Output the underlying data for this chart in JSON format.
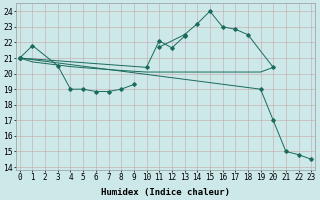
{
  "xlabel": "Humidex (Indice chaleur)",
  "line_color": "#1a6b5a",
  "bg_color": "#cce8e8",
  "grid_color_major": "#d4b8b8",
  "grid_color_minor": "#e0cccc",
  "marker": "D",
  "markersize": 1.8,
  "linewidth": 0.7,
  "ylim": [
    13.8,
    24.5
  ],
  "xlim": [
    -0.3,
    23.3
  ],
  "yticks": [
    14,
    15,
    16,
    17,
    18,
    19,
    20,
    21,
    22,
    23,
    24
  ],
  "xticks": [
    0,
    1,
    2,
    3,
    4,
    5,
    6,
    7,
    8,
    9,
    10,
    11,
    12,
    13,
    14,
    15,
    16,
    17,
    18,
    19,
    20,
    21,
    22,
    23
  ],
  "line1_x": [
    0,
    1,
    3,
    4,
    5,
    6,
    7,
    8,
    9
  ],
  "line1_y": [
    21.0,
    21.8,
    20.5,
    19.0,
    19.0,
    18.85,
    18.85,
    19.0,
    19.3
  ],
  "line2_x": [
    0,
    10,
    11,
    12,
    13
  ],
  "line2_y": [
    21.0,
    20.4,
    22.1,
    21.65,
    22.4
  ],
  "line3_x": [
    11,
    13,
    14,
    15,
    16,
    17,
    18,
    20
  ],
  "line3_y": [
    21.7,
    22.5,
    23.2,
    24.0,
    23.0,
    22.85,
    22.5,
    20.4
  ],
  "line_flat_x": [
    0,
    1,
    2,
    3,
    4,
    5,
    6,
    7,
    8,
    9,
    10,
    11,
    12,
    13,
    14,
    15,
    16,
    17,
    18,
    19,
    20
  ],
  "line_flat_y": [
    21.0,
    20.75,
    20.65,
    20.55,
    20.45,
    20.38,
    20.32,
    20.26,
    20.2,
    20.15,
    20.1,
    20.1,
    20.1,
    20.1,
    20.1,
    20.1,
    20.1,
    20.1,
    20.1,
    20.1,
    20.4
  ],
  "line_diag_x": [
    0,
    19,
    20,
    21,
    22,
    23
  ],
  "line_diag_y": [
    21.0,
    19.0,
    17.0,
    15.0,
    14.8,
    14.5
  ],
  "label_fontsize": 5.5,
  "xlabel_fontsize": 6.5
}
